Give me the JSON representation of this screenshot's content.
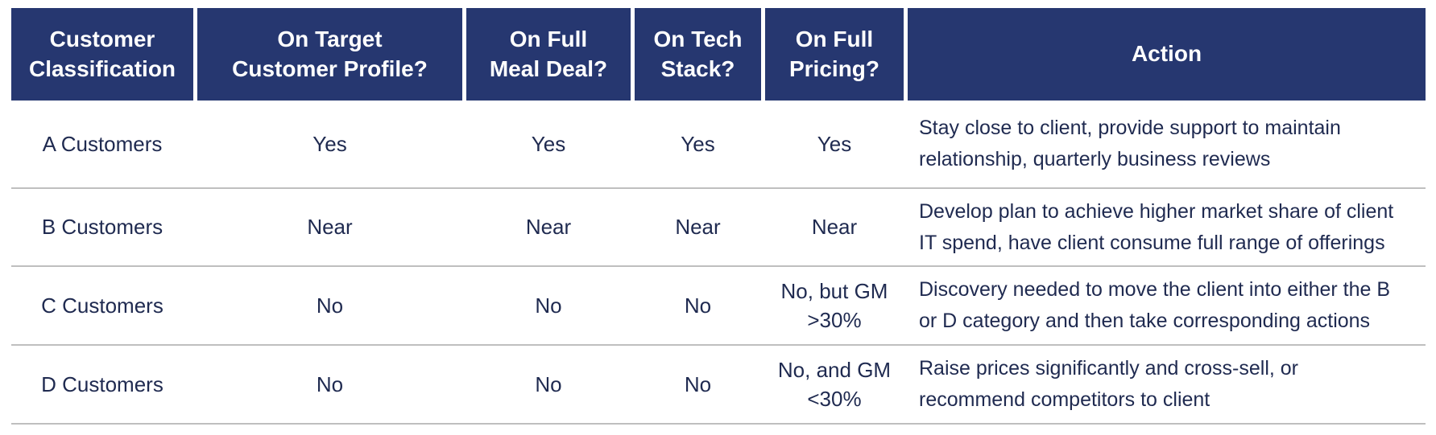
{
  "table": {
    "header": [
      {
        "label": "Customer\nClassification"
      },
      {
        "label": "On Target\nCustomer Profile?"
      },
      {
        "label": "On Full\nMeal Deal?"
      },
      {
        "label": "On Tech\nStack?"
      },
      {
        "label": "On Full\nPricing?"
      },
      {
        "label": "Action"
      }
    ],
    "rows": [
      {
        "classification": "A Customers",
        "on_target_customer_profile": "Yes",
        "on_full_meal_deal": "Yes",
        "on_tech_stack": "Yes",
        "on_full_pricing": "Yes",
        "action": "Stay close to client, provide support to maintain\nrelationship, quarterly business reviews"
      },
      {
        "classification": "B Customers",
        "on_target_customer_profile": "Near",
        "on_full_meal_deal": "Near",
        "on_tech_stack": "Near",
        "on_full_pricing": "Near",
        "action": "Develop plan to achieve higher market share of client\nIT spend, have client consume full range of offerings"
      },
      {
        "classification": "C Customers",
        "on_target_customer_profile": "No",
        "on_full_meal_deal": "No",
        "on_tech_stack": "No",
        "on_full_pricing": "No, but GM\n>30%",
        "action": "Discovery needed to move the client into either the B\nor D category and then take corresponding actions"
      },
      {
        "classification": "D Customers",
        "on_target_customer_profile": "No",
        "on_full_meal_deal": "No",
        "on_tech_stack": "No",
        "on_full_pricing": "No, and GM\n<30%",
        "action": "Raise prices significantly and cross-sell, or\nrecommend competitors to client"
      }
    ]
  },
  "colors": {
    "header_bg": "#263770",
    "header_text": "#FFFFFF",
    "body_text": "#1F2A50",
    "row_divider": "#BFBFBF"
  }
}
